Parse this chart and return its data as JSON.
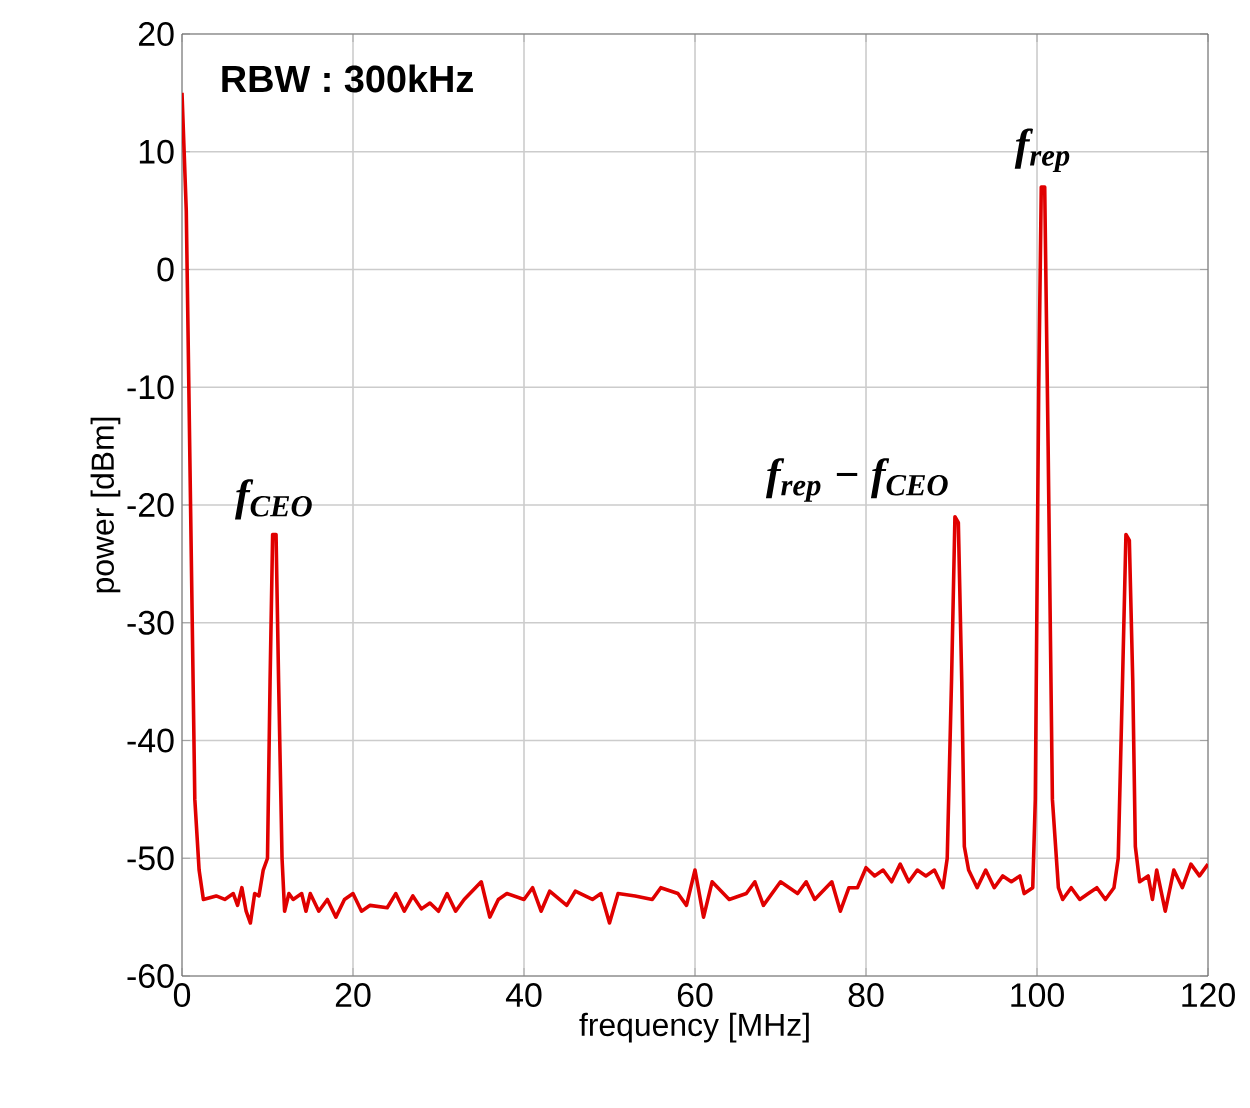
{
  "chart_data": {
    "type": "line",
    "xlabel": "frequency [MHz]",
    "ylabel": "power [dBm]",
    "xlim": [
      0,
      120
    ],
    "ylim": [
      -60,
      20
    ],
    "xticks": [
      0,
      20,
      40,
      60,
      80,
      100,
      120
    ],
    "yticks": [
      -60,
      -50,
      -40,
      -30,
      -20,
      -10,
      0,
      10,
      20
    ],
    "grid": true,
    "marker": "none",
    "line_style": "solid",
    "annotations": [
      "RBW : 300kHz",
      {
        "text": "f$_{CEO}$",
        "x": 10.8,
        "y": -22.5
      },
      {
        "text": "f$_{rep}$ − f$_{CEO}$",
        "x": 90.6,
        "y": -21
      },
      {
        "text": "f$_{rep}$",
        "x": 100.7,
        "y": 7
      }
    ],
    "series": [
      {
        "color": "#e00000",
        "x": [
          0,
          0.5,
          1,
          1.5,
          2,
          2.5,
          4,
          5,
          6,
          6.5,
          7,
          7.5,
          8,
          8.5,
          9,
          9.5,
          10,
          10.3,
          10.6,
          11,
          11.3,
          11.7,
          12,
          12.5,
          13,
          14,
          14.5,
          15,
          16,
          17,
          18,
          19,
          20,
          21,
          22,
          24,
          25,
          26,
          27,
          28,
          29,
          30,
          31,
          32,
          33,
          35,
          36,
          37,
          38,
          40,
          41,
          42,
          43,
          45,
          46,
          48,
          49,
          50,
          51,
          53,
          55,
          56,
          58,
          59,
          60,
          61,
          62,
          64,
          66,
          67,
          68,
          70,
          72,
          73,
          74,
          76,
          77,
          78,
          79,
          80,
          81,
          82,
          83,
          84,
          85,
          86,
          87,
          88,
          89,
          89.5,
          90,
          90.4,
          90.8,
          91.2,
          91.5,
          92,
          93,
          94,
          95,
          96,
          97,
          98,
          98.5,
          99.5,
          99.8,
          100.2,
          100.5,
          100.9,
          101.3,
          101.8,
          102.5,
          103,
          104,
          105,
          106,
          107,
          108,
          109,
          109.5,
          110,
          110.4,
          110.8,
          111.2,
          111.5,
          112,
          113,
          113.5,
          114,
          115,
          116,
          117,
          118,
          119,
          120
        ],
        "values": [
          15,
          5,
          -20,
          -45,
          -51,
          -53.5,
          -53.2,
          -53.5,
          -53,
          -54,
          -52.5,
          -54.5,
          -55.5,
          -53,
          -53.2,
          -51,
          -50,
          -35,
          -22.5,
          -22.5,
          -35,
          -50,
          -54.5,
          -53,
          -53.5,
          -53,
          -54.5,
          -53,
          -54.5,
          -53.5,
          -55,
          -53.5,
          -53,
          -54.5,
          -54,
          -54.2,
          -53,
          -54.5,
          -53.2,
          -54.3,
          -53.8,
          -54.5,
          -53,
          -54.5,
          -53.5,
          -52,
          -55,
          -53.5,
          -53,
          -53.5,
          -52.5,
          -54.5,
          -52.8,
          -54,
          -52.8,
          -53.5,
          -53,
          -55.5,
          -53,
          -53.2,
          -53.5,
          -52.5,
          -53,
          -54,
          -51,
          -55,
          -52,
          -53.5,
          -53,
          -52,
          -54,
          -52,
          -53,
          -52,
          -53.5,
          -52,
          -54.5,
          -52.5,
          -52.5,
          -50.8,
          -51.5,
          -51,
          -52,
          -50.5,
          -52,
          -51,
          -51.5,
          -51,
          -52.5,
          -50,
          -35,
          -21,
          -21.5,
          -35,
          -49,
          -51,
          -52.5,
          -51,
          -52.5,
          -51.5,
          -52,
          -51.5,
          -53,
          -52.5,
          -45,
          -10,
          7,
          7,
          -15,
          -45,
          -52.5,
          -53.5,
          -52.5,
          -53.5,
          -53,
          -52.5,
          -53.5,
          -52.5,
          -50,
          -35,
          -22.5,
          -23,
          -35,
          -49,
          -52,
          -51.5,
          -53.5,
          -51,
          -54.5,
          -51,
          -52.5,
          -50.5,
          -51.5,
          -50.5
        ]
      }
    ]
  }
}
